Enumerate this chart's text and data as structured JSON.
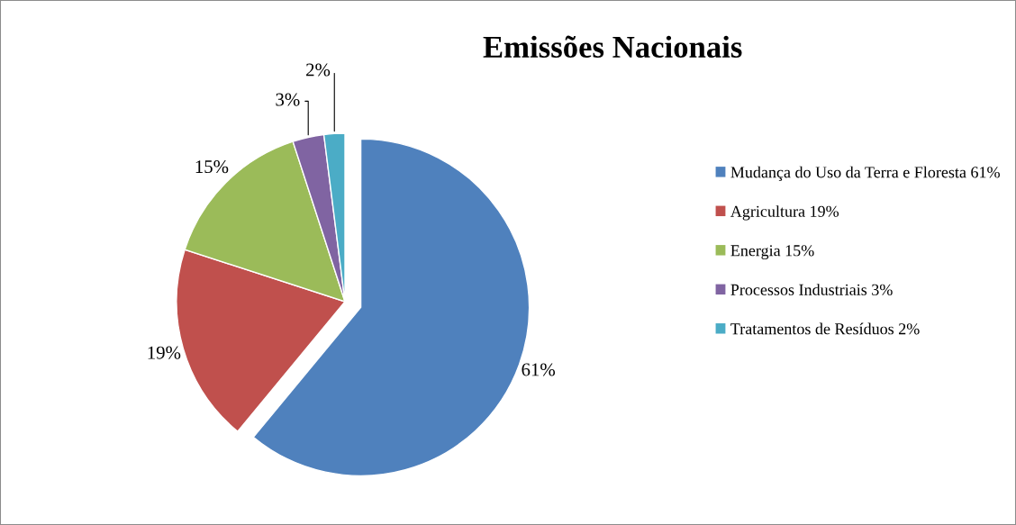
{
  "chart_data": {
    "type": "pie",
    "title": "Emissões Nacionais",
    "categories": [
      "Mudança do Uso da Terra e Floresta 61%",
      "Agricultura 19%",
      "Energia 15%",
      "Processos Industriais 3%",
      "Tratamentos de Resíduos 2%"
    ],
    "values": [
      61,
      19,
      15,
      3,
      2
    ],
    "colors": [
      "#4f81bd",
      "#c0504d",
      "#9bbb59",
      "#8064a2",
      "#4bacc6"
    ],
    "value_labels": [
      "61%",
      "19%",
      "15%",
      "3%",
      "2%"
    ],
    "legend": "right"
  }
}
